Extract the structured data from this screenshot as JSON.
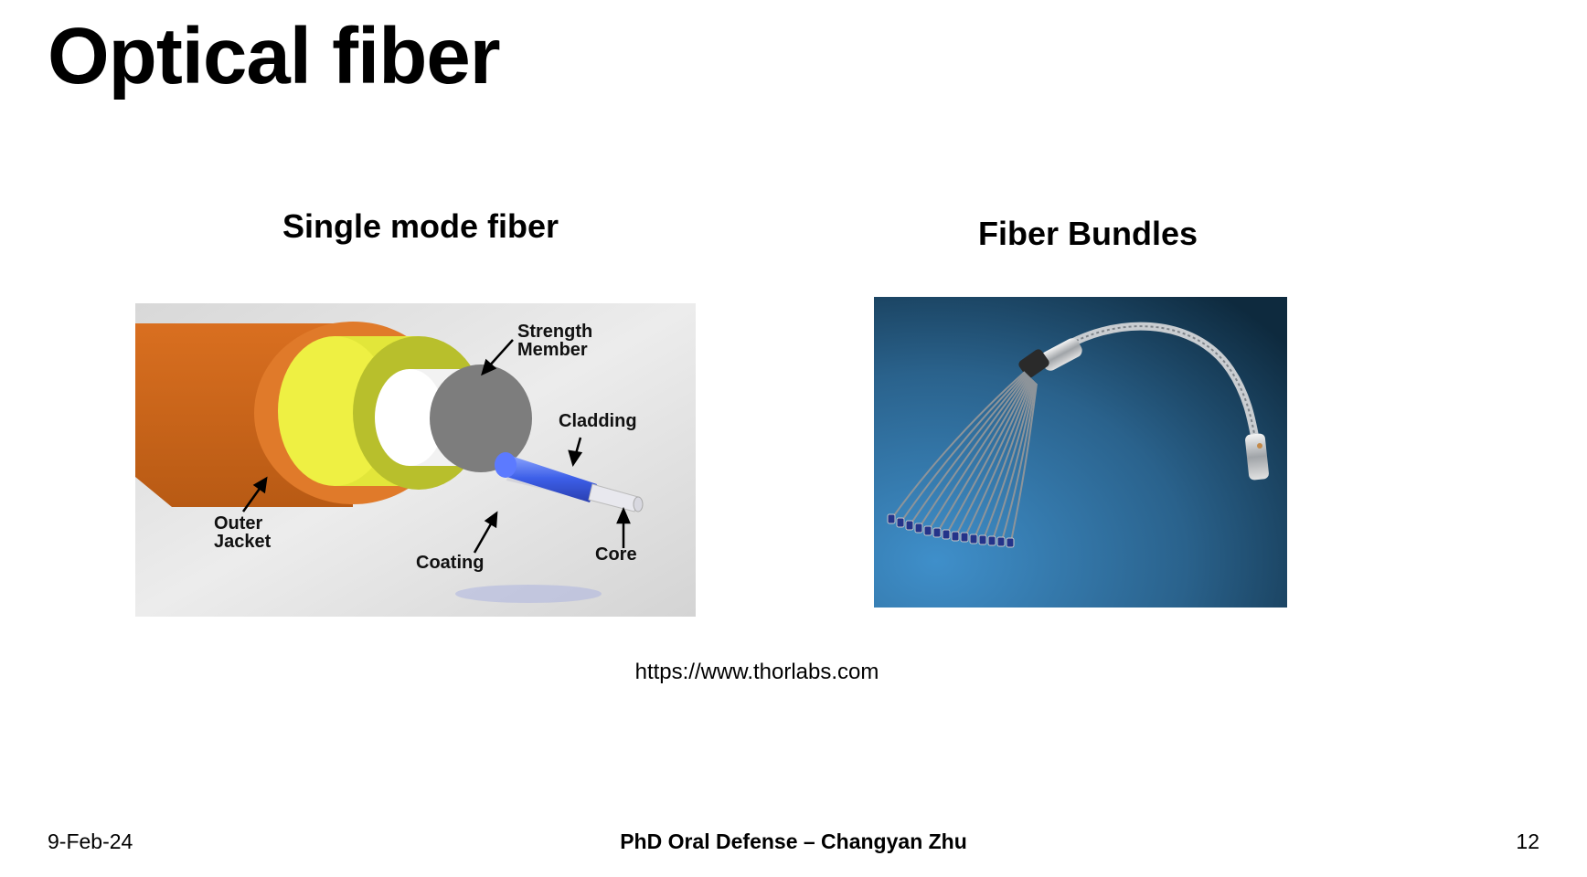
{
  "slide": {
    "title": "Optical fiber",
    "source": "https://www.thorlabs.com"
  },
  "left_panel": {
    "caption": "Single mode fiber",
    "labels": {
      "strength_member_line1": "Strength",
      "strength_member_line2": "Member",
      "cladding": "Cladding",
      "outer_jacket_line1": "Outer",
      "outer_jacket_line2": "Jacket",
      "coating": "Coating",
      "core": "Core"
    }
  },
  "right_panel": {
    "caption": "Fiber Bundles"
  },
  "footer": {
    "date": "9-Feb-24",
    "presentation": "PhD Oral Defense – Changyan Zhu",
    "page_number": "12"
  },
  "colors": {
    "jacket": "#e07a2a",
    "strength_member": "#e8ec3a",
    "bundle_background": "#2e6a95"
  }
}
